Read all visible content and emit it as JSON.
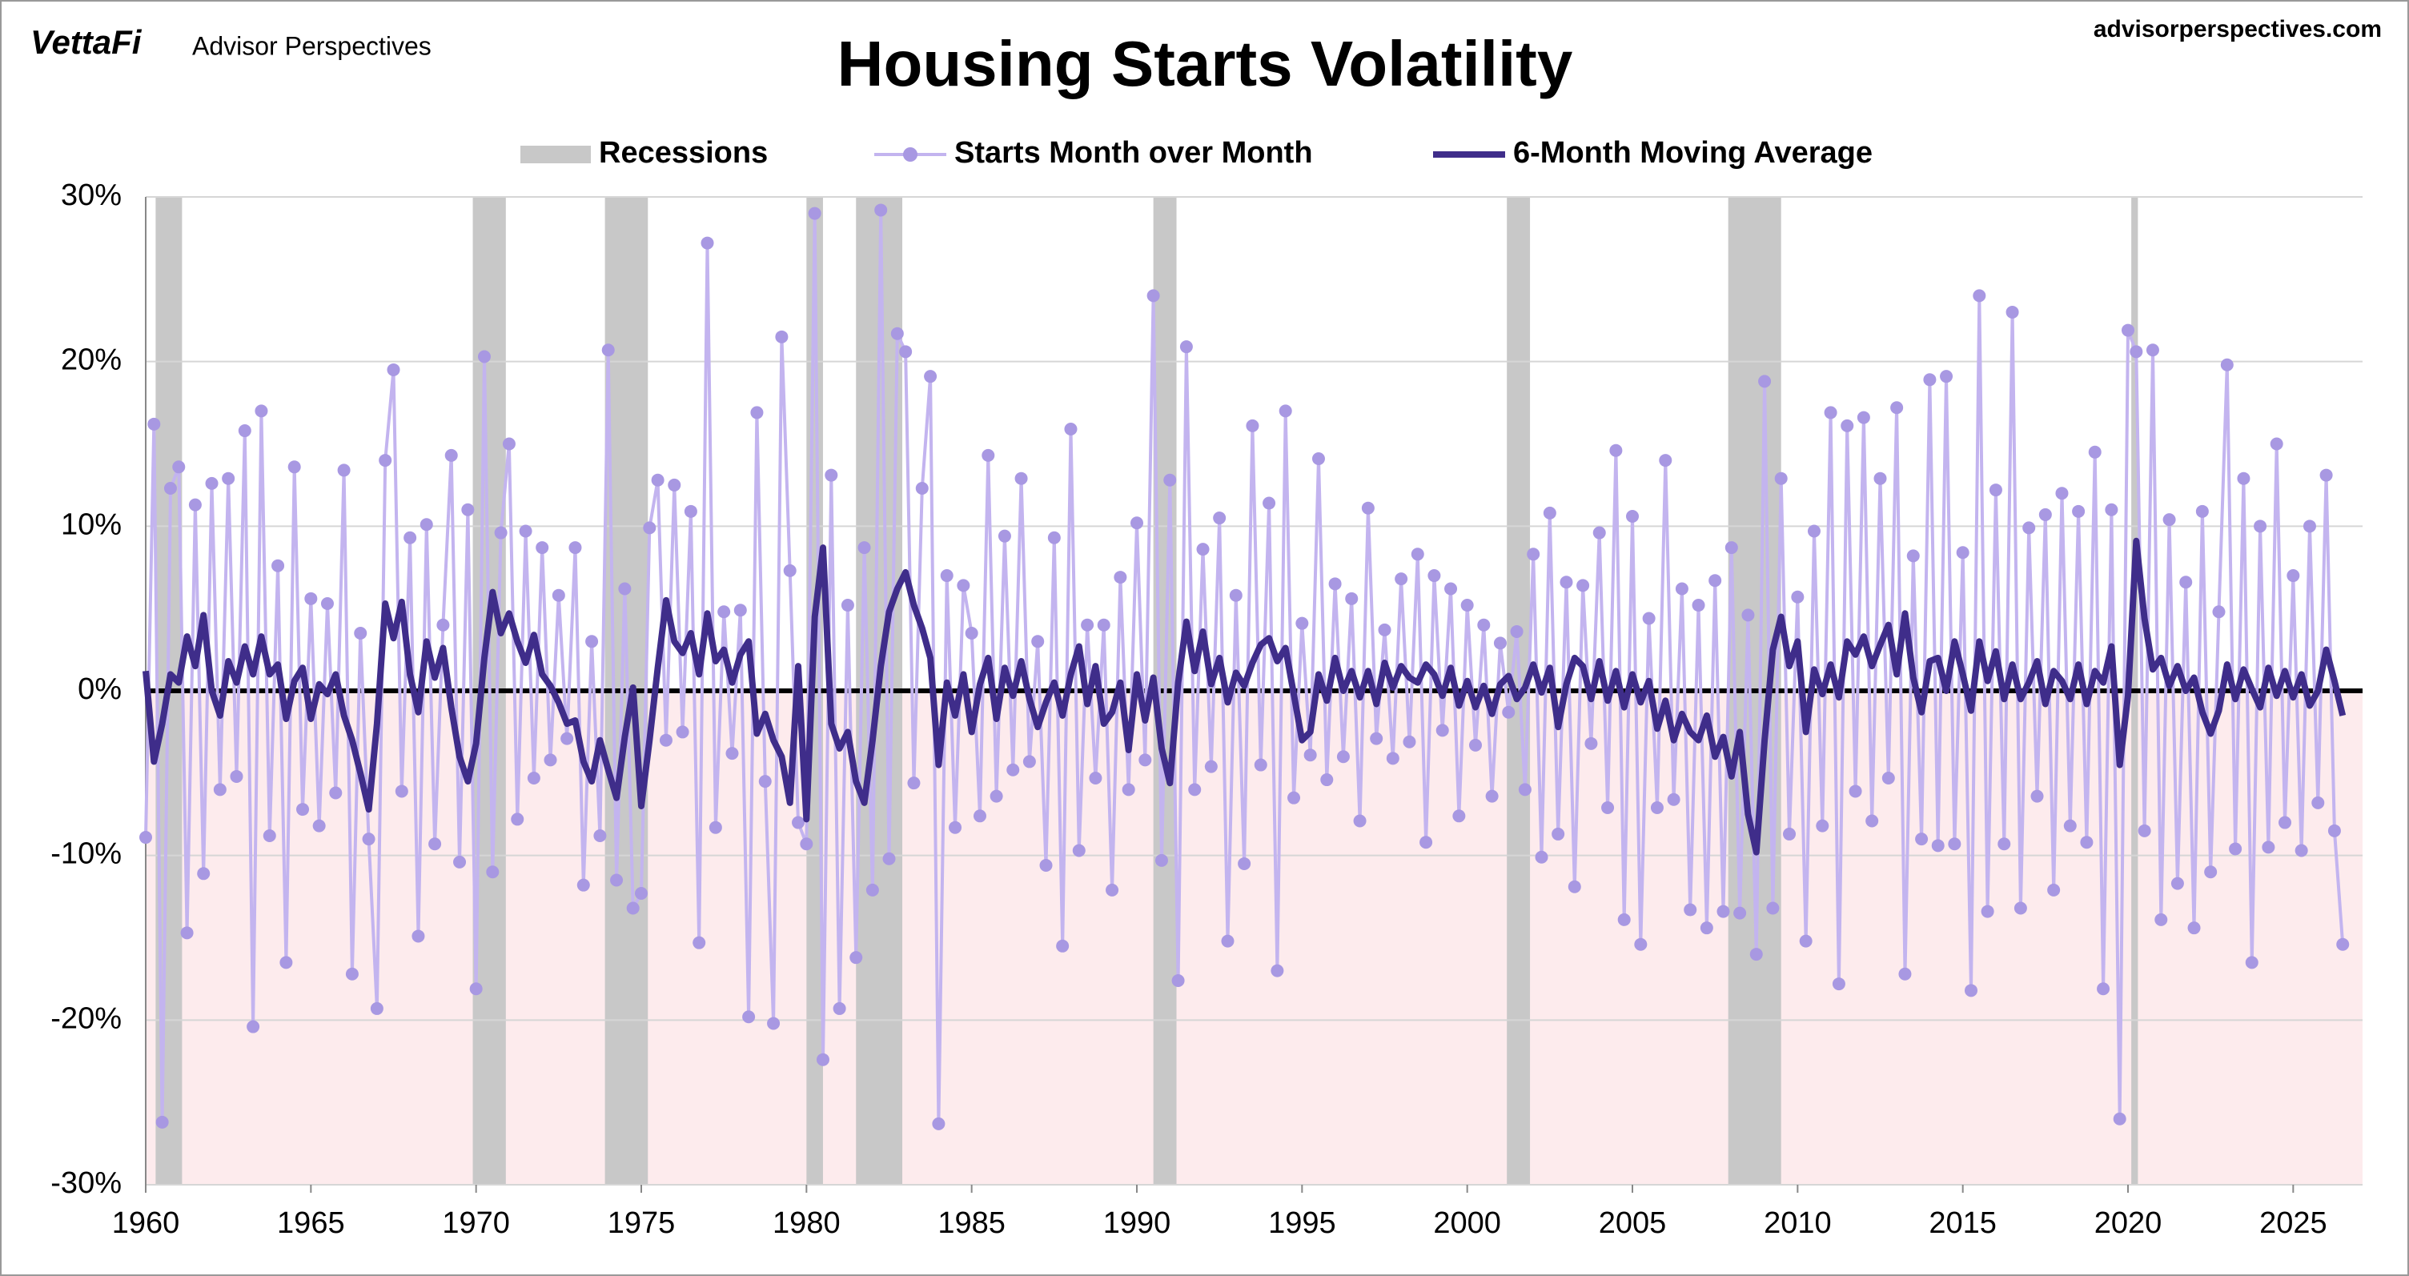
{
  "header": {
    "logo": "VettaFi",
    "brand": "Advisor Perspectives",
    "site": "advisorperspectives.com"
  },
  "chart_data": {
    "type": "line",
    "title": "Housing Starts Volatility",
    "x": [
      1960,
      1960.25,
      1960.5,
      1960.75,
      1961,
      1961.25,
      1961.5,
      1961.75,
      1962,
      1962.25,
      1962.5,
      1962.75,
      1963,
      1963.25,
      1963.5,
      1963.75,
      1964,
      1964.25,
      1964.5,
      1964.75,
      1965,
      1965.25,
      1965.5,
      1965.75,
      1966,
      1966.25,
      1966.5,
      1966.75,
      1967,
      1967.25,
      1967.5,
      1967.75,
      1968,
      1968.25,
      1968.5,
      1968.75,
      1969,
      1969.25,
      1969.5,
      1969.75,
      1970,
      1970.25,
      1970.5,
      1970.75,
      1971,
      1971.25,
      1971.5,
      1971.75,
      1972,
      1972.25,
      1972.5,
      1972.75,
      1973,
      1973.25,
      1973.5,
      1973.75,
      1974,
      1974.25,
      1974.5,
      1974.75,
      1975,
      1975.25,
      1975.5,
      1975.75,
      1976,
      1976.25,
      1976.5,
      1976.75,
      1977,
      1977.25,
      1977.5,
      1977.75,
      1978,
      1978.25,
      1978.5,
      1978.75,
      1979,
      1979.25,
      1979.5,
      1979.75,
      1980,
      1980.25,
      1980.5,
      1980.75,
      1981,
      1981.25,
      1981.5,
      1981.75,
      1982,
      1982.25,
      1982.5,
      1982.75,
      1983,
      1983.25,
      1983.5,
      1983.75,
      1984,
      1984.25,
      1984.5,
      1984.75,
      1985,
      1985.25,
      1985.5,
      1985.75,
      1986,
      1986.25,
      1986.5,
      1986.75,
      1987,
      1987.25,
      1987.5,
      1987.75,
      1988,
      1988.25,
      1988.5,
      1988.75,
      1989,
      1989.25,
      1989.5,
      1989.75,
      1990,
      1990.25,
      1990.5,
      1990.75,
      1991,
      1991.25,
      1991.5,
      1991.75,
      1992,
      1992.25,
      1992.5,
      1992.75,
      1993,
      1993.25,
      1993.5,
      1993.75,
      1994,
      1994.25,
      1994.5,
      1994.75,
      1995,
      1995.25,
      1995.5,
      1995.75,
      1996,
      1996.25,
      1996.5,
      1996.75,
      1997,
      1997.25,
      1997.5,
      1997.75,
      1998,
      1998.25,
      1998.5,
      1998.75,
      1999,
      1999.25,
      1999.5,
      1999.75,
      2000,
      2000.25,
      2000.5,
      2000.75,
      2001,
      2001.25,
      2001.5,
      2001.75,
      2002,
      2002.25,
      2002.5,
      2002.75,
      2003,
      2003.25,
      2003.5,
      2003.75,
      2004,
      2004.25,
      2004.5,
      2004.75,
      2005,
      2005.25,
      2005.5,
      2005.75,
      2006,
      2006.25,
      2006.5,
      2006.75,
      2007,
      2007.25,
      2007.5,
      2007.75,
      2008,
      2008.25,
      2008.5,
      2008.75,
      2009,
      2009.25,
      2009.5,
      2009.75,
      2010,
      2010.25,
      2010.5,
      2010.75,
      2011,
      2011.25,
      2011.5,
      2011.75,
      2012,
      2012.25,
      2012.5,
      2012.75,
      2013,
      2013.25,
      2013.5,
      2013.75,
      2014,
      2014.25,
      2014.5,
      2014.75,
      2015,
      2015.25,
      2015.5,
      2015.75,
      2016,
      2016.25,
      2016.5,
      2016.75,
      2017,
      2017.25,
      2017.5,
      2017.75,
      2018,
      2018.25,
      2018.5,
      2018.75,
      2019,
      2019.25,
      2019.5,
      2019.75,
      2020,
      2020.25,
      2020.5,
      2020.75,
      2021,
      2021.25,
      2021.5,
      2021.75,
      2022,
      2022.25,
      2022.5,
      2022.75,
      2023,
      2023.25,
      2023.5,
      2023.75,
      2024,
      2024.25,
      2024.5,
      2024.75,
      2025,
      2025.25,
      2025.5,
      2025.75,
      2026,
      2026.25,
      2026.5
    ],
    "series": [
      {
        "name": "Starts Month over Month",
        "color": "#c3b4ef",
        "marker_color": "#a898e2",
        "markers": true,
        "values": [
          -8.9,
          16.2,
          -26.2,
          12.3,
          13.6,
          -14.7,
          11.3,
          -11.1,
          12.6,
          -6.0,
          12.9,
          -5.2,
          15.8,
          -20.4,
          17.0,
          -8.8,
          7.6,
          -16.5,
          13.6,
          -7.2,
          5.6,
          -8.2,
          5.3,
          -6.2,
          13.4,
          -17.2,
          3.5,
          -9.0,
          -19.3,
          14.0,
          19.5,
          -6.1,
          9.3,
          -14.9,
          10.1,
          -9.3,
          4.0,
          14.3,
          -10.4,
          11.0,
          -18.1,
          20.3,
          -11.0,
          9.6,
          15.0,
          -7.8,
          9.7,
          -5.3,
          8.7,
          -4.2,
          5.8,
          -2.9,
          8.7,
          -11.8,
          3.0,
          -8.8,
          20.7,
          -11.5,
          6.2,
          -13.2,
          -12.3,
          9.9,
          12.8,
          -3.0,
          12.5,
          -2.5,
          10.9,
          -15.3,
          27.2,
          -8.3,
          4.8,
          -3.8,
          4.9,
          -19.8,
          16.9,
          -5.5,
          -20.2,
          21.5,
          7.3,
          -8.0,
          -9.3,
          29.0,
          -22.4,
          13.1,
          -19.3,
          5.2,
          -16.2,
          8.7,
          -12.1,
          29.2,
          -10.2,
          21.7,
          20.6,
          -5.6,
          12.3,
          19.1,
          -26.3,
          7.0,
          -8.3,
          6.4,
          3.5,
          -7.6,
          14.3,
          -6.4,
          9.4,
          -4.8,
          12.9,
          -4.3,
          3.0,
          -10.6,
          9.3,
          -15.5,
          15.9,
          -9.7,
          4.0,
          -5.3,
          4.0,
          -12.1,
          6.9,
          -6.0,
          10.2,
          -4.2,
          24.0,
          -10.3,
          12.8,
          -17.6,
          20.9,
          -6.0,
          8.6,
          -4.6,
          10.5,
          -15.2,
          5.8,
          -10.5,
          16.1,
          -4.5,
          11.4,
          -17.0,
          17.0,
          -6.5,
          4.1,
          -3.9,
          14.1,
          -5.4,
          6.5,
          -4.0,
          5.6,
          -7.9,
          11.1,
          -2.9,
          3.7,
          -4.1,
          6.8,
          -3.1,
          8.3,
          -9.2,
          7.0,
          -2.4,
          6.2,
          -7.6,
          5.2,
          -3.3,
          4.0,
          -6.4,
          2.9,
          -1.3,
          3.6,
          -6.0,
          8.3,
          -10.1,
          10.8,
          -8.7,
          6.6,
          -11.9,
          6.4,
          -3.2,
          9.6,
          -7.1,
          14.6,
          -13.9,
          10.6,
          -15.4,
          4.4,
          -7.1,
          14.0,
          -6.6,
          6.2,
          -13.3,
          5.2,
          -14.4,
          6.7,
          -13.4,
          8.7,
          -13.5,
          4.6,
          -16.0,
          18.8,
          -13.2,
          12.9,
          -8.7,
          5.7,
          -15.2,
          9.7,
          -8.2,
          16.9,
          -17.8,
          16.1,
          -6.1,
          16.6,
          -7.9,
          12.9,
          -5.3,
          17.2,
          -17.2,
          8.2,
          -9.0,
          18.9,
          -9.4,
          19.1,
          -9.3,
          8.4,
          -18.2,
          24.0,
          -13.4,
          12.2,
          -9.3,
          23.0,
          -13.2,
          9.9,
          -6.4,
          10.7,
          -12.1,
          12.0,
          -8.2,
          10.9,
          -9.2,
          14.5,
          -18.1,
          11.0,
          -26.0,
          21.9,
          20.6,
          -8.5,
          20.7,
          -13.9,
          10.4,
          -11.7,
          6.6,
          -14.4,
          10.9,
          -11.0,
          4.8,
          19.8,
          -9.6,
          12.9,
          -16.5,
          10.0,
          -9.5,
          15.0,
          -8.0,
          7.0,
          -9.7,
          10.0,
          -6.8,
          13.1,
          -8.5,
          -15.4
        ]
      },
      {
        "name": "6-Month Moving Average",
        "color": "#3f2d8a",
        "markers": false,
        "values": [
          1.2,
          -4.3,
          -2.0,
          1.0,
          0.5,
          3.3,
          1.5,
          4.6,
          0.0,
          -1.5,
          1.8,
          0.5,
          2.7,
          1.0,
          3.3,
          1.0,
          1.6,
          -1.7,
          0.6,
          1.4,
          -1.7,
          0.4,
          -0.2,
          1.0,
          -1.5,
          -3.0,
          -5.0,
          -7.2,
          -2.0,
          5.3,
          3.2,
          5.4,
          1.0,
          -1.3,
          3.0,
          0.8,
          2.6,
          -1.0,
          -4.0,
          -5.5,
          -3.2,
          2.0,
          6.0,
          3.5,
          4.7,
          3.0,
          1.7,
          3.4,
          1.0,
          0.3,
          -0.7,
          -2.0,
          -1.8,
          -4.3,
          -5.5,
          -3.0,
          -4.8,
          -6.5,
          -2.8,
          0.2,
          -7.0,
          -3.0,
          1.4,
          5.5,
          3.0,
          2.3,
          3.5,
          1.0,
          4.7,
          1.8,
          2.5,
          0.5,
          2.2,
          3.0,
          -2.6,
          -1.4,
          -3.0,
          -4.0,
          -6.8,
          1.5,
          -7.8,
          4.5,
          8.7,
          -2.0,
          -3.5,
          -2.5,
          -5.5,
          -6.8,
          -3.0,
          1.5,
          4.8,
          6.2,
          7.2,
          5.2,
          3.8,
          2.0,
          -4.5,
          0.5,
          -1.5,
          1.0,
          -2.5,
          0.4,
          2.0,
          -1.7,
          1.4,
          -0.3,
          1.8,
          -0.5,
          -2.2,
          -0.7,
          0.5,
          -1.5,
          1.0,
          2.7,
          -0.8,
          1.5,
          -2.0,
          -1.3,
          0.5,
          -3.6,
          1.0,
          -1.8,
          0.8,
          -3.5,
          -5.6,
          0.5,
          4.2,
          1.2,
          3.6,
          0.4,
          2.0,
          -0.7,
          1.1,
          0.3,
          1.7,
          2.8,
          3.2,
          1.8,
          2.6,
          -0.2,
          -3.0,
          -2.5,
          1.0,
          -0.6,
          2.0,
          0.0,
          1.2,
          -0.4,
          1.2,
          -0.8,
          1.7,
          0.2,
          1.5,
          0.8,
          0.5,
          1.6,
          1.0,
          -0.3,
          1.4,
          -0.9,
          0.6,
          -1.0,
          0.3,
          -1.4,
          0.4,
          0.9,
          -0.5,
          0.2,
          1.6,
          -0.1,
          1.4,
          -2.2,
          0.4,
          2.0,
          1.5,
          -0.5,
          1.8,
          -0.6,
          1.2,
          -1.0,
          1.0,
          -0.7,
          0.6,
          -2.3,
          -0.6,
          -3.0,
          -1.4,
          -2.5,
          -3.0,
          -1.5,
          -4.0,
          -2.8,
          -5.2,
          -2.5,
          -7.5,
          -9.8,
          -3.0,
          2.5,
          4.5,
          1.5,
          3.0,
          -2.5,
          1.3,
          -0.2,
          1.6,
          -0.4,
          3.0,
          2.2,
          3.3,
          1.5,
          2.8,
          4.0,
          1.0,
          4.7,
          0.8,
          -1.3,
          1.8,
          2.0,
          0.0,
          3.0,
          1.0,
          -1.2,
          3.0,
          0.6,
          2.4,
          -0.5,
          1.6,
          -0.5,
          0.5,
          1.8,
          -0.8,
          1.2,
          0.6,
          -0.5,
          1.6,
          -0.8,
          1.2,
          0.5,
          2.7,
          -4.5,
          -0.3,
          9.1,
          4.4,
          1.3,
          2.0,
          0.3,
          1.5,
          0.0,
          0.8,
          -1.3,
          -2.6,
          -1.2,
          1.6,
          -0.5,
          1.3,
          0.1,
          -1.0,
          1.4,
          -0.3,
          1.2,
          -0.4,
          1.0,
          -0.9,
          0.0,
          2.5,
          0.6,
          -1.5
        ]
      }
    ],
    "recessions": {
      "name": "Recessions",
      "color": "#c8c8c8",
      "spans": [
        [
          1960.3,
          1961.1
        ],
        [
          1969.9,
          1970.9
        ],
        [
          1973.9,
          1975.2
        ],
        [
          1980.0,
          1980.5
        ],
        [
          1981.5,
          1982.9
        ],
        [
          1990.5,
          1991.2
        ],
        [
          2001.2,
          2001.9
        ],
        [
          2007.9,
          2009.5
        ],
        [
          2020.1,
          2020.3
        ]
      ]
    },
    "xlim": [
      1960,
      2027.1
    ],
    "xticks": [
      1960,
      1965,
      1970,
      1975,
      1980,
      1985,
      1990,
      1995,
      2000,
      2005,
      2010,
      2015,
      2020,
      2025
    ],
    "ylim": [
      -30,
      30
    ],
    "yticks": [
      {
        "value": -30,
        "label": "-30%"
      },
      {
        "value": -20,
        "label": "-20%"
      },
      {
        "value": -10,
        "label": "-10%"
      },
      {
        "value": 0,
        "label": "0%"
      },
      {
        "value": 10,
        "label": "10%"
      },
      {
        "value": 20,
        "label": "20%"
      },
      {
        "value": 30,
        "label": "30%"
      }
    ],
    "grid": true,
    "negative_fill": "#fdebed",
    "zero_line_color": "#000000"
  }
}
